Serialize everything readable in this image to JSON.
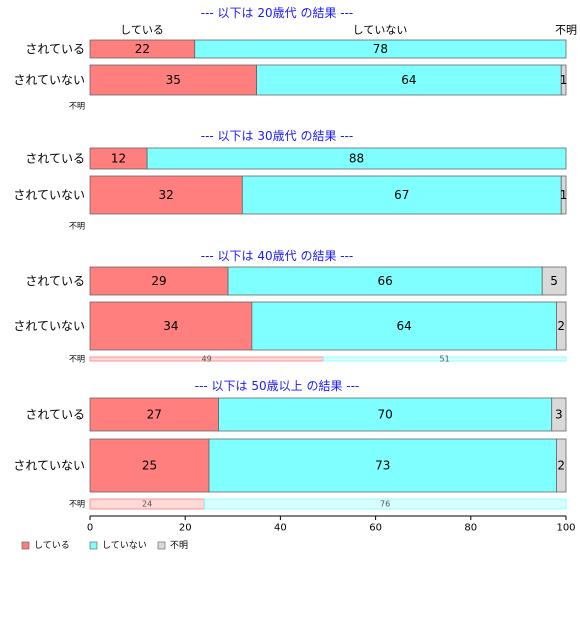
{
  "colors": {
    "している": "#ff7f7f",
    "していない": "#7fffff",
    "不明": "#d9d9d9",
    "title": "#1a1aff",
    "border": "#666666"
  },
  "header_labels": [
    "している",
    "していない",
    "不明"
  ],
  "legend": [
    {
      "label": "している",
      "color": "#ff7f7f"
    },
    {
      "label": "していない",
      "color": "#7fffff"
    },
    {
      "label": "不明",
      "color": "#d9d9d9"
    }
  ],
  "chart_data": {
    "type": "bar",
    "orientation": "horizontal",
    "stacked": true,
    "xlim": [
      0,
      100
    ],
    "xticks": [
      0,
      20,
      40,
      60,
      80,
      100
    ],
    "series_names": [
      "している",
      "していない",
      "不明"
    ],
    "panels": [
      {
        "title": "--- 以下は 20歳代 の結果 ---",
        "rows": [
          {
            "label": "されている",
            "values": [
              22,
              78,
              0
            ],
            "labels": [
              "22",
              "78",
              ""
            ]
          },
          {
            "label": "されていない",
            "values": [
              35,
              64,
              1
            ],
            "labels": [
              "35",
              "64",
              "1"
            ]
          },
          {
            "label": "不明",
            "values": [],
            "labels": []
          }
        ]
      },
      {
        "title": "--- 以下は 30歳代 の結果 ---",
        "rows": [
          {
            "label": "されている",
            "values": [
              12,
              88,
              0
            ],
            "labels": [
              "12",
              "88",
              ""
            ]
          },
          {
            "label": "されていない",
            "values": [
              32,
              67,
              1
            ],
            "labels": [
              "32",
              "67",
              "1"
            ]
          },
          {
            "label": "不明",
            "values": [],
            "labels": []
          }
        ]
      },
      {
        "title": "--- 以下は 40歳代 の結果 ---",
        "rows": [
          {
            "label": "されている",
            "values": [
              29,
              66,
              5
            ],
            "labels": [
              "29",
              "66",
              "5"
            ]
          },
          {
            "label": "されていない",
            "values": [
              34,
              64,
              2
            ],
            "labels": [
              "34",
              "64",
              "2"
            ]
          },
          {
            "label": "不明",
            "values": [
              49,
              51,
              0
            ],
            "labels": [
              "49",
              "51",
              ""
            ]
          }
        ]
      },
      {
        "title": "--- 以下は 50歳以上 の結果 ---",
        "rows": [
          {
            "label": "されている",
            "values": [
              27,
              70,
              3
            ],
            "labels": [
              "27",
              "70",
              "3"
            ]
          },
          {
            "label": "されていない",
            "values": [
              25,
              73,
              2
            ],
            "labels": [
              "25",
              "73",
              "2"
            ]
          },
          {
            "label": "不明",
            "values": [
              24,
              76,
              0
            ],
            "labels": [
              "24",
              "76",
              ""
            ]
          }
        ]
      }
    ]
  }
}
